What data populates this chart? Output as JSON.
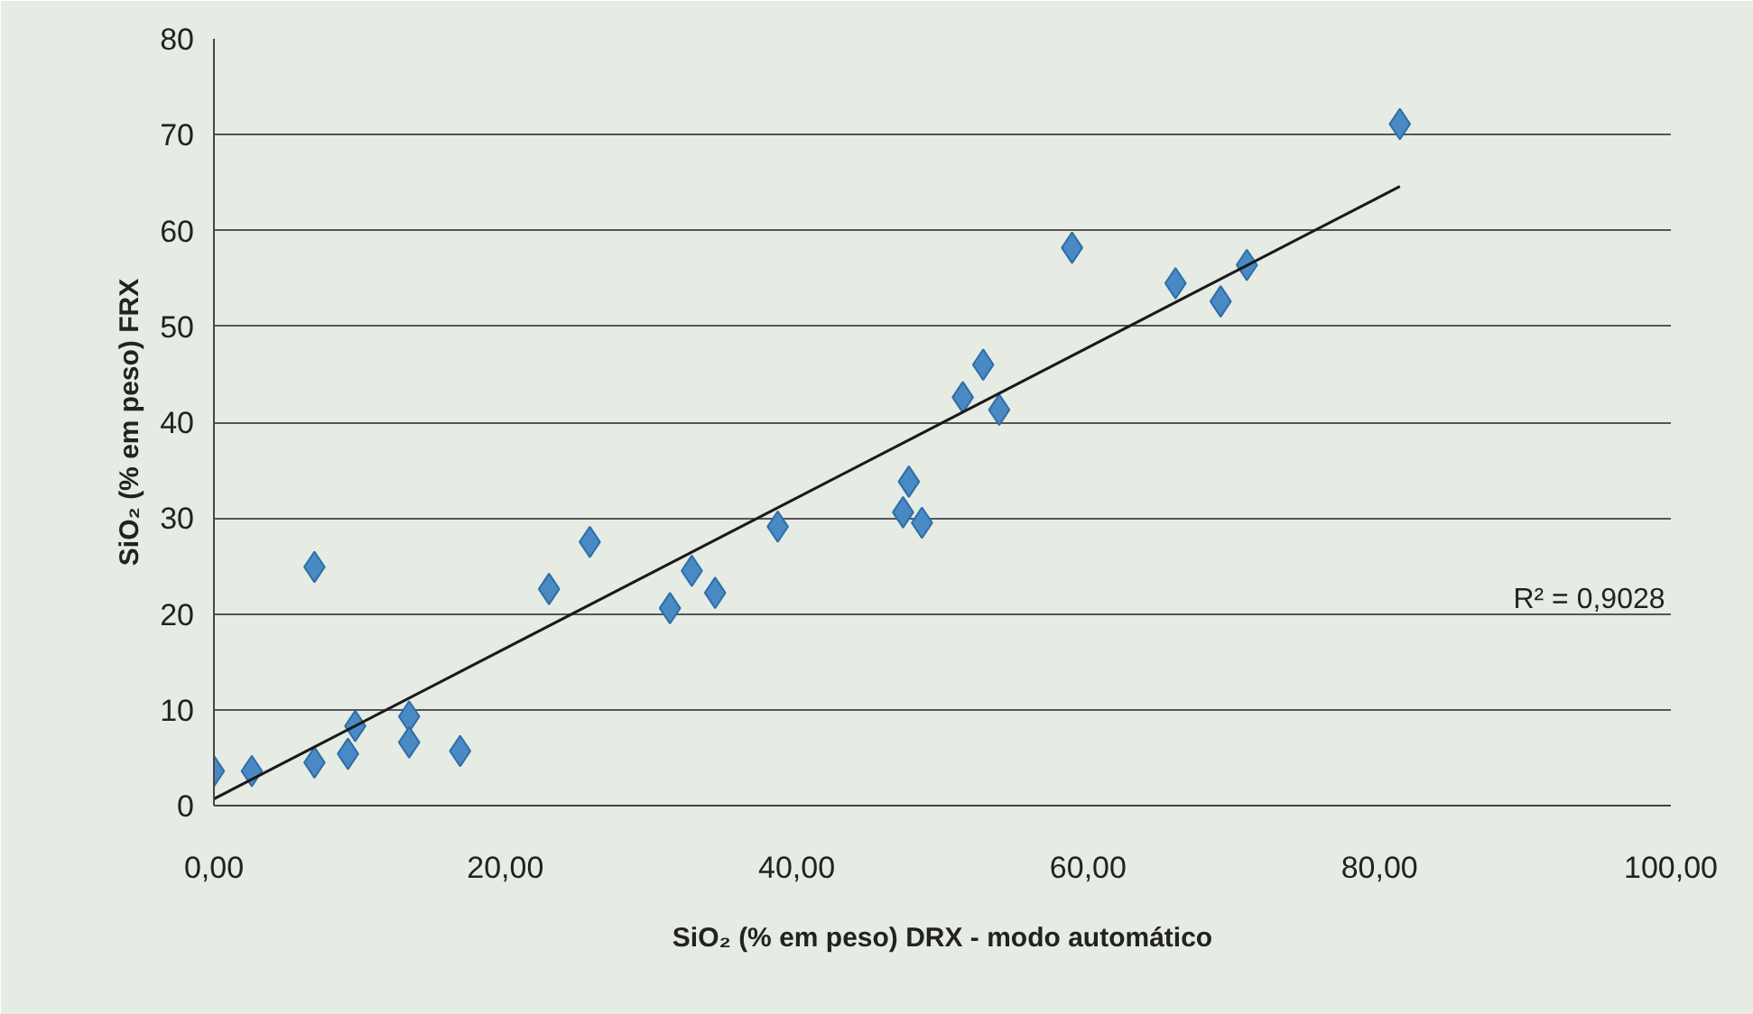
{
  "chart_data": {
    "type": "scatter",
    "xlabel": "SiO₂ (% em peso) DRX - modo automático",
    "ylabel": "SiO₂ (% em peso) FRX",
    "annotations": [
      "R² = 0,9028"
    ],
    "xlim": [
      0,
      100
    ],
    "ylim": [
      0,
      80
    ],
    "xticks": [
      {
        "value": 0,
        "label": "0,00"
      },
      {
        "value": 20,
        "label": "20,00"
      },
      {
        "value": 40,
        "label": "40,00"
      },
      {
        "value": 60,
        "label": "60,00"
      },
      {
        "value": 80,
        "label": "80,00"
      },
      {
        "value": 100,
        "label": "100,00"
      }
    ],
    "yticks": [
      0,
      10,
      20,
      30,
      40,
      50,
      60,
      70,
      80
    ],
    "grid": "y",
    "marker": "diamond",
    "series": [
      {
        "type": "scatter",
        "color": "#4a8ac4",
        "x": [
          0.0,
          2.6,
          6.9,
          6.9,
          9.2,
          9.7,
          13.4,
          13.4,
          16.9,
          23.0,
          25.8,
          31.3,
          32.8,
          34.4,
          38.7,
          47.7,
          47.3,
          48.6,
          51.4,
          52.8,
          53.9,
          58.9,
          66.0,
          69.1,
          70.9,
          81.4
        ],
        "values": [
          3.6,
          3.6,
          24.9,
          4.5,
          5.4,
          8.3,
          9.3,
          6.6,
          5.7,
          22.6,
          27.5,
          20.6,
          24.5,
          22.2,
          29.1,
          33.8,
          30.6,
          29.5,
          42.6,
          46.0,
          41.3,
          58.2,
          54.5,
          52.6,
          56.4,
          71.1
        ]
      },
      {
        "type": "line",
        "color": "#1a1a1a",
        "marker": "none",
        "x": [
          0.0,
          81.4
        ],
        "values": [
          0.7,
          64.6
        ]
      }
    ]
  }
}
